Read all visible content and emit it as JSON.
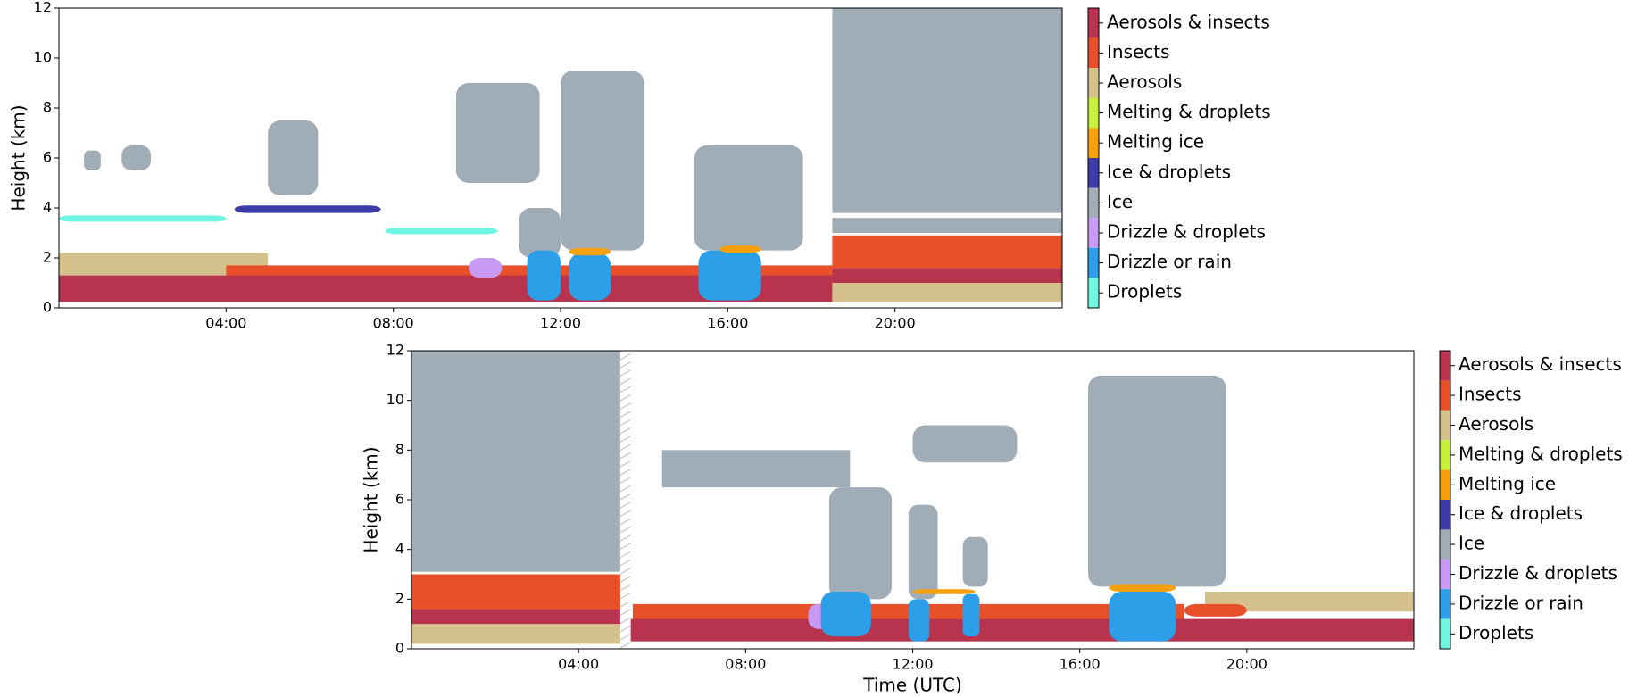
{
  "chart_data": [
    {
      "type": "classification",
      "ylabel": "Height (km)",
      "xlim": [
        0,
        24
      ],
      "ylim": [
        0,
        12
      ],
      "xticks": [
        {
          "value": 4,
          "label": "04:00"
        },
        {
          "value": 8,
          "label": "08:00"
        },
        {
          "value": 12,
          "label": "12:00"
        },
        {
          "value": 16,
          "label": "16:00"
        },
        {
          "value": 20,
          "label": "20:00"
        }
      ],
      "yticks": [
        0,
        2,
        4,
        6,
        8,
        10,
        12
      ],
      "legend": [
        {
          "name": "Aerosols & insects",
          "color": "#b8334e"
        },
        {
          "name": "Insects",
          "color": "#e8502a"
        },
        {
          "name": "Aerosols",
          "color": "#d4c08a"
        },
        {
          "name": "Melting & droplets",
          "color": "#c7f03a"
        },
        {
          "name": "Melting ice",
          "color": "#f5a00c"
        },
        {
          "name": "Ice & droplets",
          "color": "#3c3ca8"
        },
        {
          "name": "Ice",
          "color": "#a0adb7"
        },
        {
          "name": "Drizzle & droplets",
          "color": "#c89af5"
        },
        {
          "name": "Drizzle or rain",
          "color": "#2d9ee8"
        },
        {
          "name": "Droplets",
          "color": "#6ff5e0"
        }
      ],
      "regions": [
        {
          "class": "Aerosols",
          "x": [
            0,
            5
          ],
          "y": [
            1.3,
            2.2
          ]
        },
        {
          "class": "Insects",
          "x": [
            4,
            18.5
          ],
          "y": [
            0.8,
            1.7
          ]
        },
        {
          "class": "Aerosols & insects",
          "x": [
            0,
            18.5
          ],
          "y": [
            0.25,
            1.3
          ]
        },
        {
          "class": "Droplets",
          "x": [
            0,
            4
          ],
          "y": [
            3.45,
            3.7
          ]
        },
        {
          "class": "Droplets",
          "x": [
            7.8,
            10.5
          ],
          "y": [
            2.95,
            3.2
          ]
        },
        {
          "class": "Ice",
          "x": [
            0.6,
            1
          ],
          "y": [
            5.5,
            6.3
          ]
        },
        {
          "class": "Ice",
          "x": [
            1.5,
            2.2
          ],
          "y": [
            5.5,
            6.5
          ]
        },
        {
          "class": "Ice",
          "x": [
            5,
            6.2
          ],
          "y": [
            4.5,
            7.5
          ]
        },
        {
          "class": "Ice & droplets",
          "x": [
            4.2,
            7.7
          ],
          "y": [
            3.8,
            4.1
          ]
        },
        {
          "class": "Ice",
          "x": [
            9.5,
            11.5
          ],
          "y": [
            5,
            9
          ]
        },
        {
          "class": "Ice",
          "x": [
            11,
            12
          ],
          "y": [
            2,
            4
          ]
        },
        {
          "class": "Ice",
          "x": [
            12,
            14
          ],
          "y": [
            2.3,
            9.5
          ]
        },
        {
          "class": "Ice",
          "x": [
            15.2,
            17.8
          ],
          "y": [
            2.3,
            6.5
          ]
        },
        {
          "class": "Drizzle & droplets",
          "x": [
            9.8,
            10.6
          ],
          "y": [
            1.2,
            2
          ]
        },
        {
          "class": "Drizzle or rain",
          "x": [
            11.2,
            12
          ],
          "y": [
            0.3,
            2.3
          ]
        },
        {
          "class": "Drizzle or rain",
          "x": [
            12.2,
            13.2
          ],
          "y": [
            0.3,
            2.2
          ]
        },
        {
          "class": "Drizzle or rain",
          "x": [
            15.3,
            16.8
          ],
          "y": [
            0.3,
            2.3
          ]
        },
        {
          "class": "Melting ice",
          "x": [
            12.2,
            13.2
          ],
          "y": [
            2.1,
            2.4
          ]
        },
        {
          "class": "Melting ice",
          "x": [
            15.8,
            16.8
          ],
          "y": [
            2.2,
            2.5
          ]
        },
        {
          "class": "Aerosols",
          "x": [
            18.5,
            24
          ],
          "y": [
            0.25,
            1
          ]
        },
        {
          "class": "Aerosols & insects",
          "x": [
            18.5,
            24
          ],
          "y": [
            1,
            1.6
          ]
        },
        {
          "class": "Insects",
          "x": [
            18.5,
            24
          ],
          "y": [
            1.6,
            2.9
          ]
        },
        {
          "class": "Ice",
          "x": [
            18.5,
            24
          ],
          "y": [
            3,
            3.6
          ]
        },
        {
          "class": "Ice",
          "x": [
            18.5,
            24
          ],
          "y": [
            3.8,
            12
          ]
        }
      ]
    },
    {
      "type": "classification",
      "ylabel": "Height (km)",
      "xlabel": "Time (UTC)",
      "xlim": [
        0,
        24
      ],
      "ylim": [
        0,
        12
      ],
      "xticks": [
        {
          "value": 4,
          "label": "04:00"
        },
        {
          "value": 8,
          "label": "08:00"
        },
        {
          "value": 12,
          "label": "12:00"
        },
        {
          "value": 16,
          "label": "16:00"
        },
        {
          "value": 20,
          "label": "20:00"
        }
      ],
      "yticks": [
        0,
        2,
        4,
        6,
        8,
        10,
        12
      ],
      "legend": [
        {
          "name": "Aerosols & insects",
          "color": "#b8334e"
        },
        {
          "name": "Insects",
          "color": "#e8502a"
        },
        {
          "name": "Aerosols",
          "color": "#d4c08a"
        },
        {
          "name": "Melting & droplets",
          "color": "#c7f03a"
        },
        {
          "name": "Melting ice",
          "color": "#f5a00c"
        },
        {
          "name": "Ice & droplets",
          "color": "#3c3ca8"
        },
        {
          "name": "Ice",
          "color": "#a0adb7"
        },
        {
          "name": "Drizzle & droplets",
          "color": "#c89af5"
        },
        {
          "name": "Drizzle or rain",
          "color": "#2d9ee8"
        },
        {
          "name": "Droplets",
          "color": "#6ff5e0"
        }
      ],
      "missing": [
        5,
        5.25
      ],
      "regions": [
        {
          "class": "Aerosols",
          "x": [
            0,
            5
          ],
          "y": [
            0.2,
            1
          ]
        },
        {
          "class": "Aerosols & insects",
          "x": [
            0,
            5
          ],
          "y": [
            1,
            1.6
          ]
        },
        {
          "class": "Insects",
          "x": [
            0,
            5
          ],
          "y": [
            1.6,
            3
          ]
        },
        {
          "class": "Ice",
          "x": [
            0,
            5
          ],
          "y": [
            3.1,
            12
          ]
        },
        {
          "class": "Aerosols",
          "x": [
            19,
            24
          ],
          "y": [
            1.5,
            2.3
          ]
        },
        {
          "class": "Insects",
          "x": [
            5.3,
            18.5
          ],
          "y": [
            1,
            1.8
          ]
        },
        {
          "class": "Insects",
          "x": [
            18.5,
            20
          ],
          "y": [
            1.3,
            1.8
          ]
        },
        {
          "class": "Aerosols & insects",
          "x": [
            5.25,
            24
          ],
          "y": [
            0.3,
            1.2
          ]
        },
        {
          "class": "Ice",
          "x": [
            6,
            10.5
          ],
          "y": [
            6.5,
            8
          ]
        },
        {
          "class": "Ice",
          "x": [
            12,
            14.5
          ],
          "y": [
            7.5,
            9
          ]
        },
        {
          "class": "Ice",
          "x": [
            10,
            11.5
          ],
          "y": [
            2,
            6.5
          ]
        },
        {
          "class": "Ice",
          "x": [
            11.9,
            12.6
          ],
          "y": [
            2,
            5.8
          ]
        },
        {
          "class": "Ice",
          "x": [
            13.2,
            13.8
          ],
          "y": [
            2.5,
            4.5
          ]
        },
        {
          "class": "Ice",
          "x": [
            16.2,
            19.5
          ],
          "y": [
            2.5,
            11
          ]
        },
        {
          "class": "Drizzle & droplets",
          "x": [
            9.5,
            10.2
          ],
          "y": [
            0.8,
            1.8
          ]
        },
        {
          "class": "Drizzle or rain",
          "x": [
            9.8,
            11
          ],
          "y": [
            0.5,
            2.3
          ]
        },
        {
          "class": "Drizzle or rain",
          "x": [
            11.9,
            12.4
          ],
          "y": [
            0.3,
            2
          ]
        },
        {
          "class": "Drizzle or rain",
          "x": [
            13.2,
            13.6
          ],
          "y": [
            0.5,
            2.2
          ]
        },
        {
          "class": "Drizzle or rain",
          "x": [
            16.7,
            18.3
          ],
          "y": [
            0.3,
            2.3
          ]
        },
        {
          "class": "Melting ice",
          "x": [
            16.7,
            18.3
          ],
          "y": [
            2.3,
            2.6
          ]
        },
        {
          "class": "Melting ice",
          "x": [
            12,
            13.5
          ],
          "y": [
            2.2,
            2.4
          ]
        }
      ]
    }
  ]
}
